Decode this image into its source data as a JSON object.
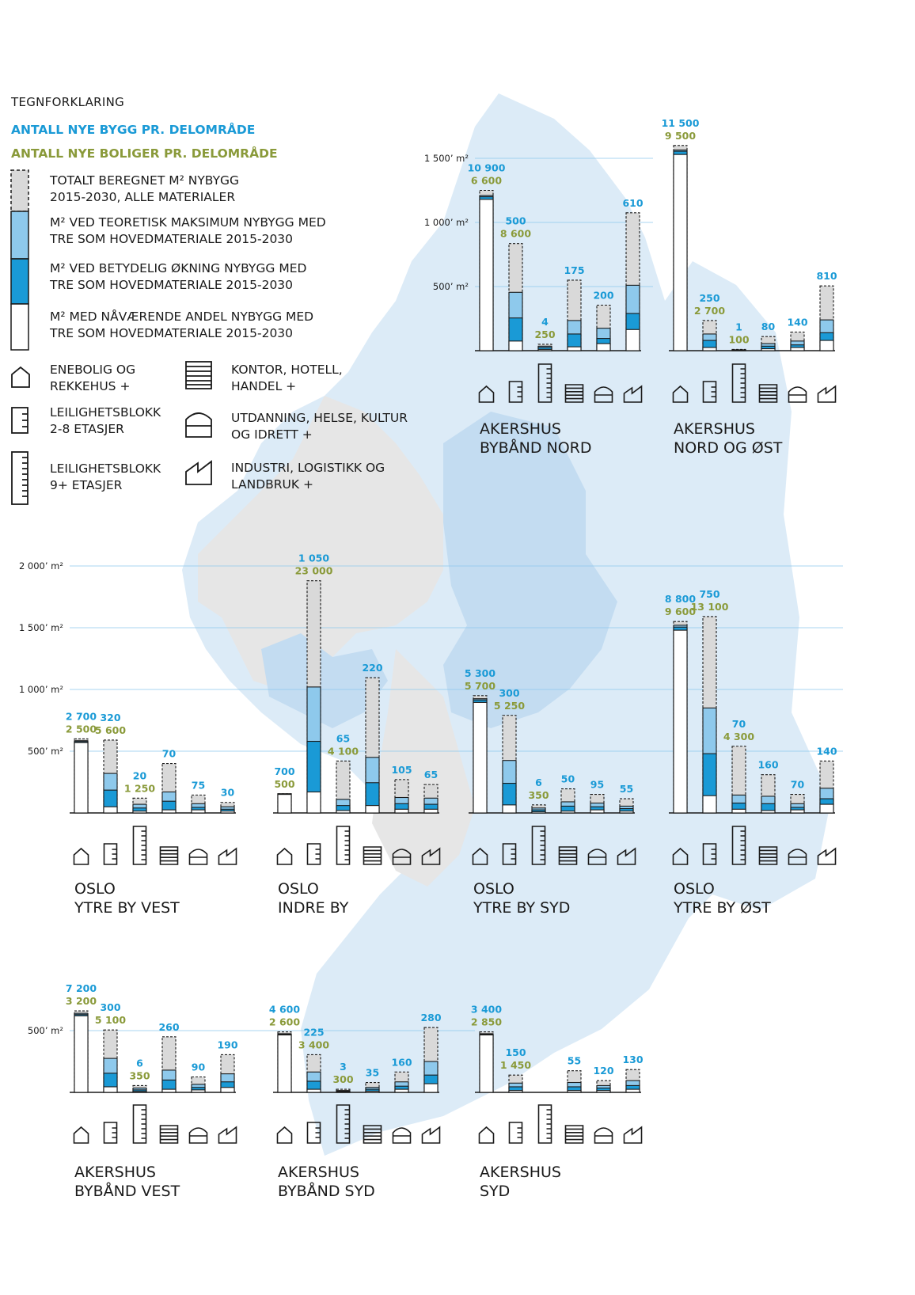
{
  "legend": {
    "heading": "TEGNFORKLARING",
    "count_buildings": "ANTALL NYE BYGG PR. DELOMRÅDE",
    "count_homes": "ANTALL NYE BOLIGER PR. DELOMRÅDE",
    "layers": [
      {
        "label_1": "TOTALT BEREGNET M² NYBYGG",
        "label_2": "2015-2030, ALLE MATERIALER"
      },
      {
        "label_1": "M² VED TEORETISK MAKSIMUM NYBYGG MED",
        "label_2": "TRE SOM HOVEDMATERIALE 2015-2030"
      },
      {
        "label_1": "M² VED BETYDELIG ØKNING NYBYGG MED",
        "label_2": "TRE SOM HOVEDMATERIALE 2015-2030"
      },
      {
        "label_1": "M² MED NÅVÆRENDE ANDEL NYBYGG MED",
        "label_2": "TRE SOM HOVEDMATERIALE 2015-2030"
      }
    ],
    "building_types": [
      {
        "icon": "house-icon",
        "label_1": "ENEBOLIG OG",
        "label_2": "REKKEHUS +"
      },
      {
        "icon": "apartment-low-icon",
        "label_1": "LEILIGHETSBLOKK",
        "label_2": "2-8 ETASJER"
      },
      {
        "icon": "apartment-high-icon",
        "label_1": "LEILIGHETSBLOKK",
        "label_2": "9+ ETASJER"
      },
      {
        "icon": "office-icon",
        "label_1": "KONTOR, HOTELL,",
        "label_2": "HANDEL +"
      },
      {
        "icon": "education-icon",
        "label_1": "UTDANNING, HELSE, KULTUR",
        "label_2": "OG IDRETT +"
      },
      {
        "icon": "industry-icon",
        "label_1": "INDUSTRI, LOGISTIKK OG",
        "label_2": "LANDBRUK +"
      }
    ]
  },
  "colors": {
    "total_gray": "#d9d9d9",
    "theoretical_light_blue": "#8ec9ec",
    "significant_blue": "#1a9ad6",
    "current_white": "#ffffff",
    "count_blue": "#1a9ad6",
    "count_green": "#8a9a3a",
    "map_light_blue": "#dcebf7",
    "map_mid_blue": "#c3dcf1",
    "map_gray": "#e6e6e6"
  },
  "chart_data": [
    {
      "type": "bar",
      "region_1": "AKERSHUS",
      "region_2": "BYBÅND NORD",
      "unit": "1000 m²",
      "ticks": [
        {
          "value": 500,
          "label": "500’ m²"
        },
        {
          "value": 1000,
          "label": "1 000’ m²"
        },
        {
          "value": 1500,
          "label": "1 500’ m²"
        }
      ],
      "bars": [
        {
          "type": "house",
          "total": 1250,
          "theoretical": 1210,
          "significant": 1200,
          "current": 1180,
          "buildings": "10 900",
          "homes": "6 600"
        },
        {
          "type": "apartment_low",
          "total": 835,
          "theoretical": 455,
          "significant": 255,
          "current": 75,
          "buildings": "500",
          "homes": "8 600"
        },
        {
          "type": "apartment_high",
          "total": 50,
          "theoretical": 35,
          "significant": 25,
          "current": 10,
          "buildings": "4",
          "homes": "250"
        },
        {
          "type": "office",
          "total": 550,
          "theoretical": 235,
          "significant": 130,
          "current": 30,
          "buildings": "175",
          "homes": null
        },
        {
          "type": "education",
          "total": 355,
          "theoretical": 175,
          "significant": 95,
          "current": 55,
          "buildings": "200",
          "homes": null
        },
        {
          "type": "industry",
          "total": 1075,
          "theoretical": 510,
          "significant": 290,
          "current": 165,
          "buildings": "610",
          "homes": null
        }
      ]
    },
    {
      "type": "bar",
      "region_1": "AKERSHUS",
      "region_2": "NORD OG ØST",
      "unit": "1000 m²",
      "ticks": [],
      "bars": [
        {
          "type": "house",
          "total": 1600,
          "theoretical": 1565,
          "significant": 1555,
          "current": 1530,
          "buildings": "11 500",
          "homes": "9 500"
        },
        {
          "type": "apartment_low",
          "total": 235,
          "theoretical": 130,
          "significant": 80,
          "current": 25,
          "buildings": "250",
          "homes": "2 700"
        },
        {
          "type": "apartment_high",
          "total": 10,
          "theoretical": 7,
          "significant": 5,
          "current": 2,
          "buildings": "1",
          "homes": "100"
        },
        {
          "type": "office",
          "total": 110,
          "theoretical": 55,
          "significant": 35,
          "current": 15,
          "buildings": "80",
          "homes": null
        },
        {
          "type": "education",
          "total": 145,
          "theoretical": 75,
          "significant": 45,
          "current": 25,
          "buildings": "140",
          "homes": null
        },
        {
          "type": "industry",
          "total": 505,
          "theoretical": 240,
          "significant": 140,
          "current": 80,
          "buildings": "810",
          "homes": null
        }
      ]
    },
    {
      "type": "bar",
      "region_1": "OSLO",
      "region_2": "YTRE BY VEST",
      "unit": "1000 m²",
      "ticks": [
        {
          "value": 500,
          "label": "500’ m²"
        },
        {
          "value": 1000,
          "label": "1 000’ m²"
        },
        {
          "value": 1500,
          "label": "1 500’ m²"
        },
        {
          "value": 2000,
          "label": "2 000’ m²"
        }
      ],
      "bars": [
        {
          "type": "house",
          "total": 600,
          "theoretical": 585,
          "significant": 578,
          "current": 570,
          "buildings": "2 700",
          "homes": "2 500"
        },
        {
          "type": "apartment_low",
          "total": 590,
          "theoretical": 320,
          "significant": 185,
          "current": 50,
          "buildings": "320",
          "homes": "5 600"
        },
        {
          "type": "apartment_high",
          "total": 120,
          "theoretical": 70,
          "significant": 40,
          "current": 15,
          "buildings": "20",
          "homes": "1 250"
        },
        {
          "type": "office",
          "total": 400,
          "theoretical": 170,
          "significant": 95,
          "current": 25,
          "buildings": "70",
          "homes": null
        },
        {
          "type": "education",
          "total": 145,
          "theoretical": 75,
          "significant": 45,
          "current": 25,
          "buildings": "75",
          "homes": null
        },
        {
          "type": "industry",
          "total": 85,
          "theoretical": 50,
          "significant": 30,
          "current": 15,
          "buildings": "30",
          "homes": null
        }
      ]
    },
    {
      "type": "bar",
      "region_1": "OSLO",
      "region_2": "INDRE BY",
      "unit": "1000 m²",
      "ticks": [],
      "bars": [
        {
          "type": "house",
          "total": 155,
          "theoretical": 155,
          "significant": 155,
          "current": 150,
          "buildings": "700",
          "homes": "500"
        },
        {
          "type": "apartment_low",
          "total": 1880,
          "theoretical": 1020,
          "significant": 580,
          "current": 170,
          "buildings": "1 050",
          "homes": "23 000"
        },
        {
          "type": "apartment_high",
          "total": 420,
          "theoretical": 110,
          "significant": 60,
          "current": 20,
          "buildings": "65",
          "homes": "4 100"
        },
        {
          "type": "office",
          "total": 1095,
          "theoretical": 450,
          "significant": 245,
          "current": 60,
          "buildings": "220",
          "homes": null
        },
        {
          "type": "education",
          "total": 270,
          "theoretical": 125,
          "significant": 75,
          "current": 30,
          "buildings": "105",
          "homes": null
        },
        {
          "type": "industry",
          "total": 230,
          "theoretical": 120,
          "significant": 70,
          "current": 30,
          "buildings": "65",
          "homes": null
        }
      ]
    },
    {
      "type": "bar",
      "region_1": "OSLO",
      "region_2": "YTRE BY SYD",
      "unit": "1000 m²",
      "ticks": [],
      "bars": [
        {
          "type": "house",
          "total": 950,
          "theoretical": 925,
          "significant": 915,
          "current": 895,
          "buildings": "5 300",
          "homes": "5 700"
        },
        {
          "type": "apartment_low",
          "total": 790,
          "theoretical": 425,
          "significant": 240,
          "current": 65,
          "buildings": "300",
          "homes": "5 250"
        },
        {
          "type": "apartment_high",
          "total": 65,
          "theoretical": 40,
          "significant": 25,
          "current": 10,
          "buildings": "6",
          "homes": "350"
        },
        {
          "type": "office",
          "total": 195,
          "theoretical": 90,
          "significant": 55,
          "current": 15,
          "buildings": "50",
          "homes": null
        },
        {
          "type": "education",
          "total": 150,
          "theoretical": 80,
          "significant": 50,
          "current": 25,
          "buildings": "95",
          "homes": null
        },
        {
          "type": "industry",
          "total": 115,
          "theoretical": 55,
          "significant": 35,
          "current": 15,
          "buildings": "55",
          "homes": null
        }
      ]
    },
    {
      "type": "bar",
      "region_1": "OSLO",
      "region_2": "YTRE BY ØST",
      "unit": "1000 m²",
      "ticks": [],
      "bars": [
        {
          "type": "house",
          "total": 1550,
          "theoretical": 1520,
          "significant": 1505,
          "current": 1480,
          "buildings": "8 800",
          "homes": "9 600"
        },
        {
          "type": "apartment_low",
          "total": 1590,
          "theoretical": 850,
          "significant": 480,
          "current": 140,
          "buildings": "750",
          "homes": "13 100"
        },
        {
          "type": "apartment_high",
          "total": 540,
          "theoretical": 145,
          "significant": 80,
          "current": 30,
          "buildings": "70",
          "homes": "4 300"
        },
        {
          "type": "office",
          "total": 310,
          "theoretical": 135,
          "significant": 75,
          "current": 20,
          "buildings": "160",
          "homes": null
        },
        {
          "type": "education",
          "total": 150,
          "theoretical": 75,
          "significant": 45,
          "current": 25,
          "buildings": "70",
          "homes": null
        },
        {
          "type": "industry",
          "total": 420,
          "theoretical": 200,
          "significant": 115,
          "current": 70,
          "buildings": "140",
          "homes": null
        }
      ]
    },
    {
      "type": "bar",
      "region_1": "AKERSHUS",
      "region_2": "BYBÅND VEST",
      "unit": "1000 m²",
      "ticks": [
        {
          "value": 500,
          "label": "500’ m²"
        }
      ],
      "bars": [
        {
          "type": "house",
          "total": 660,
          "theoretical": 640,
          "significant": 630,
          "current": 620,
          "buildings": "7 200",
          "homes": "3 200"
        },
        {
          "type": "apartment_low",
          "total": 505,
          "theoretical": 275,
          "significant": 155,
          "current": 45,
          "buildings": "300",
          "homes": "5 100"
        },
        {
          "type": "apartment_high",
          "total": 55,
          "theoretical": 35,
          "significant": 20,
          "current": 8,
          "buildings": "6",
          "homes": "350"
        },
        {
          "type": "office",
          "total": 450,
          "theoretical": 180,
          "significant": 100,
          "current": 25,
          "buildings": "260",
          "homes": null
        },
        {
          "type": "education",
          "total": 125,
          "theoretical": 65,
          "significant": 40,
          "current": 20,
          "buildings": "90",
          "homes": null
        },
        {
          "type": "industry",
          "total": 305,
          "theoretical": 150,
          "significant": 85,
          "current": 40,
          "buildings": "190",
          "homes": null
        }
      ]
    },
    {
      "type": "bar",
      "region_1": "AKERSHUS",
      "region_2": "BYBÅND SYD",
      "unit": "1000 m²",
      "ticks": [],
      "bars": [
        {
          "type": "house",
          "total": 490,
          "theoretical": 475,
          "significant": 470,
          "current": 465,
          "buildings": "4 600",
          "homes": "2 600"
        },
        {
          "type": "apartment_low",
          "total": 305,
          "theoretical": 165,
          "significant": 90,
          "current": 25,
          "buildings": "225",
          "homes": "3 400"
        },
        {
          "type": "apartment_high",
          "total": 25,
          "theoretical": 15,
          "significant": 10,
          "current": 4,
          "buildings": "3",
          "homes": "300"
        },
        {
          "type": "office",
          "total": 80,
          "theoretical": 40,
          "significant": 25,
          "current": 10,
          "buildings": "35",
          "homes": null
        },
        {
          "type": "education",
          "total": 165,
          "theoretical": 85,
          "significant": 50,
          "current": 25,
          "buildings": "160",
          "homes": null
        },
        {
          "type": "industry",
          "total": 525,
          "theoretical": 250,
          "significant": 140,
          "current": 70,
          "buildings": "280",
          "homes": null
        }
      ]
    },
    {
      "type": "bar",
      "region_1": "AKERSHUS",
      "region_2": "SYD",
      "unit": "1000 m²",
      "ticks": [],
      "bars": [
        {
          "type": "house",
          "total": 490,
          "theoretical": 475,
          "significant": 470,
          "current": 465,
          "buildings": "3 400",
          "homes": "2 850"
        },
        {
          "type": "apartment_low",
          "total": 140,
          "theoretical": 75,
          "significant": 45,
          "current": 15,
          "buildings": "150",
          "homes": "1 450"
        },
        {
          "type": "apartment_high",
          "total": 0,
          "theoretical": 0,
          "significant": 0,
          "current": 0,
          "buildings": null,
          "homes": null
        },
        {
          "type": "office",
          "total": 175,
          "theoretical": 80,
          "significant": 45,
          "current": 15,
          "buildings": "55",
          "homes": null
        },
        {
          "type": "education",
          "total": 95,
          "theoretical": 55,
          "significant": 35,
          "current": 15,
          "buildings": "120",
          "homes": null
        },
        {
          "type": "industry",
          "total": 185,
          "theoretical": 95,
          "significant": 55,
          "current": 25,
          "buildings": "130",
          "homes": null
        }
      ]
    }
  ]
}
